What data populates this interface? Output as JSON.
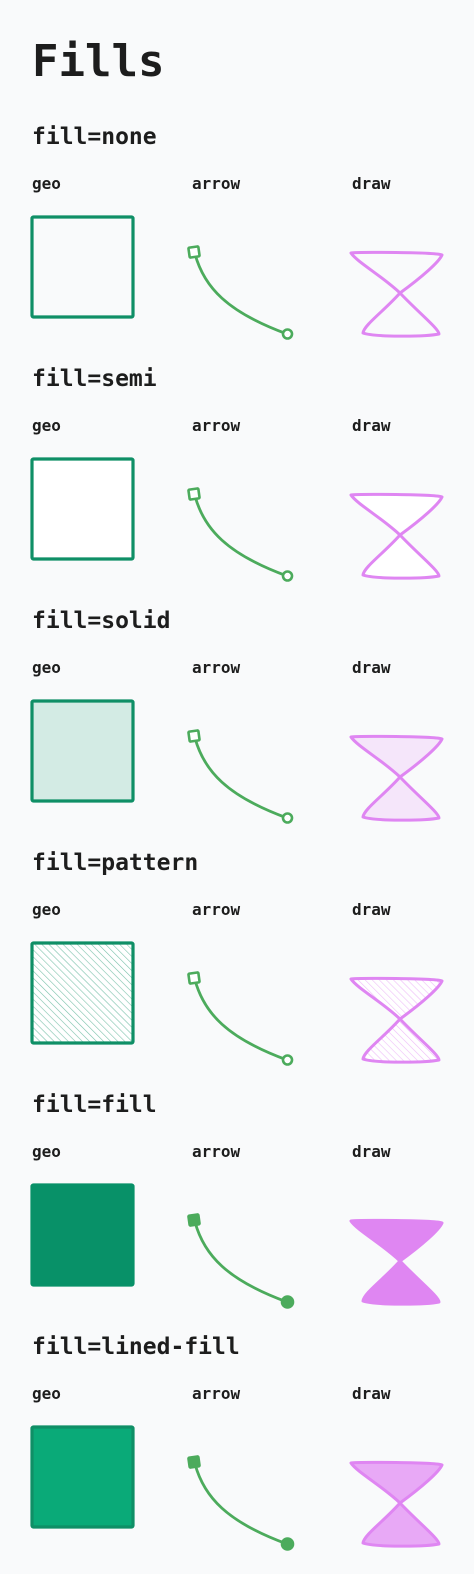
{
  "page": {
    "title": "Fills"
  },
  "columns": {
    "geo": "geo",
    "arrow": "arrow",
    "draw": "draw"
  },
  "colors": {
    "geo_stroke": "#0f8f66",
    "arrow_stroke": "#4cab5c",
    "draw_stroke": "#df86f2",
    "semi_fill": "#ffffff",
    "geo_solid_fill": "#d3ebe4",
    "draw_solid_fill": "#f5e6fa",
    "geo_fill": "#089168",
    "draw_fill": "#df86f2",
    "geo_lined_fill": "#0aaa78",
    "draw_lined_fill": "#e8a9f6"
  },
  "sections": [
    {
      "title": "fill=none",
      "mode": "none"
    },
    {
      "title": "fill=semi",
      "mode": "semi"
    },
    {
      "title": "fill=solid",
      "mode": "solid"
    },
    {
      "title": "fill=pattern",
      "mode": "pattern"
    },
    {
      "title": "fill=fill",
      "mode": "fill"
    },
    {
      "title": "fill=lined-fill",
      "mode": "lined-fill"
    }
  ]
}
